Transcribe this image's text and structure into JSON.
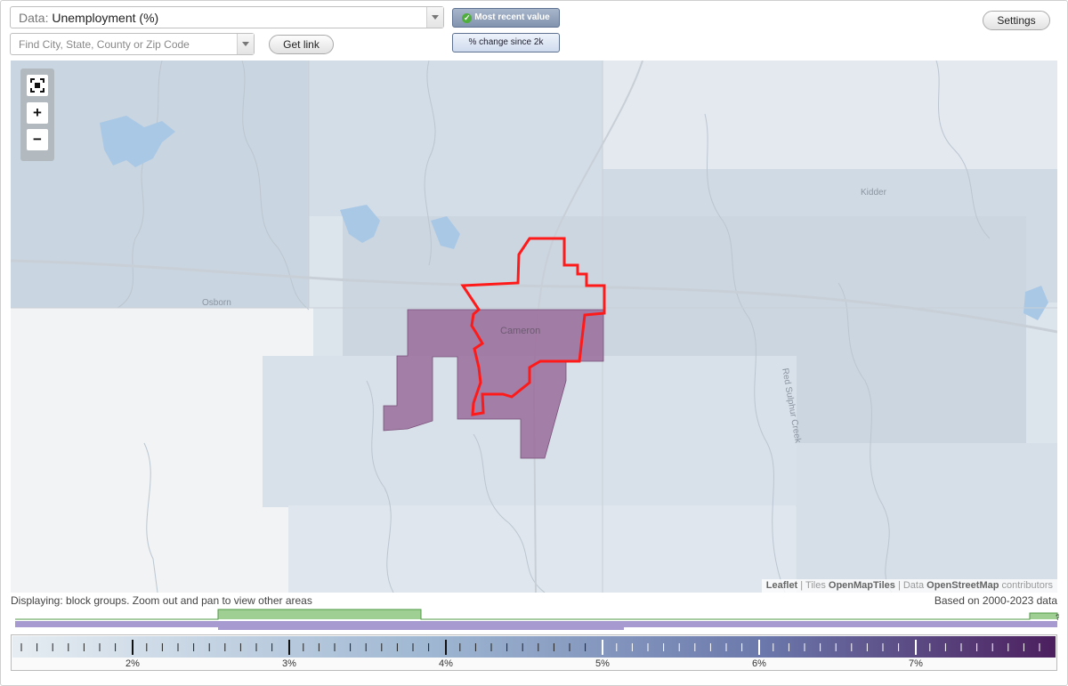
{
  "controls": {
    "data_prefix": "Data:",
    "data_value": "Unemployment (%)",
    "search_placeholder": "Find City, State, County or Zip Code",
    "get_link_label": "Get link",
    "settings_label": "Settings",
    "toggle_recent_label": "Most recent value",
    "toggle_change_label": "% change since 2k",
    "toggle_active": "Most recent value"
  },
  "map": {
    "zoom_controls": {
      "fit_icon": "fullscreen-icon",
      "zoom_in": "+",
      "zoom_out": "−"
    },
    "place_labels": {
      "kidder": "Kidder",
      "osborn": "Osborn",
      "cameron": "Cameron",
      "creek": "Red Sulphur Creek"
    },
    "attribution": {
      "leaflet": "Leaflet",
      "tiles_prefix": "| Tiles",
      "tiles": "OpenMapTiles",
      "data_prefix": "| Data",
      "osm": "OpenStreetMap",
      "contributors": "contributors"
    },
    "colors": {
      "selection_outline": "#ff1a1a",
      "block_fill": "#9a6c9a",
      "water": "#a9c8e6",
      "road": "#c9cfd6"
    }
  },
  "status": {
    "displaying": "Displaying: block groups. Zoom out and pan to view other areas",
    "based_on": "Based on 2000-2023 data"
  },
  "legend": {
    "tick_labels": [
      "2%",
      "3%",
      "4%",
      "5%",
      "6%",
      "7%"
    ],
    "gradient_colors": [
      "#e6edf2",
      "#9fb7d2",
      "#6b78ab",
      "#4c1f5e"
    ],
    "histogram_colors": {
      "green": "#9fcf92",
      "purple": "#a79ad0"
    },
    "unknown_marker": "?"
  }
}
